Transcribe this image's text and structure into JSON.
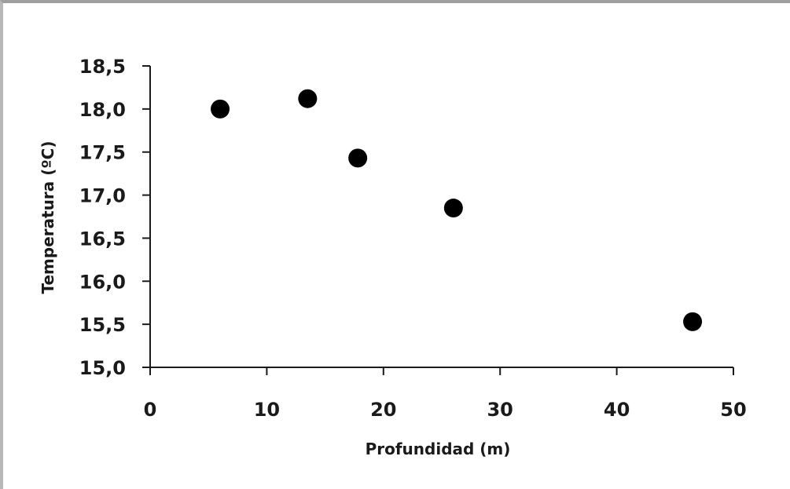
{
  "chart_data": {
    "type": "scatter",
    "title": "",
    "xlabel": "Profundidad (m)",
    "ylabel": "Temperatura (ºC)",
    "xlim": [
      0,
      50
    ],
    "ylim": [
      15.0,
      18.5
    ],
    "x_ticks": [
      0,
      10,
      20,
      30,
      40,
      50
    ],
    "x_tick_labels": [
      "0",
      "10",
      "20",
      "30",
      "40",
      "50"
    ],
    "y_ticks": [
      15.0,
      15.5,
      16.0,
      16.5,
      17.0,
      17.5,
      18.0,
      18.5
    ],
    "y_tick_labels": [
      "15,0",
      "15,5",
      "16,0",
      "16,5",
      "17,0",
      "17,5",
      "18,0",
      "18,5"
    ],
    "grid": false,
    "legend": "none",
    "point_color": "#000000",
    "points": [
      {
        "x": 6,
        "y": 18.0
      },
      {
        "x": 13.5,
        "y": 18.12
      },
      {
        "x": 17.8,
        "y": 17.43
      },
      {
        "x": 26,
        "y": 16.85
      },
      {
        "x": 46.5,
        "y": 15.53
      }
    ]
  }
}
